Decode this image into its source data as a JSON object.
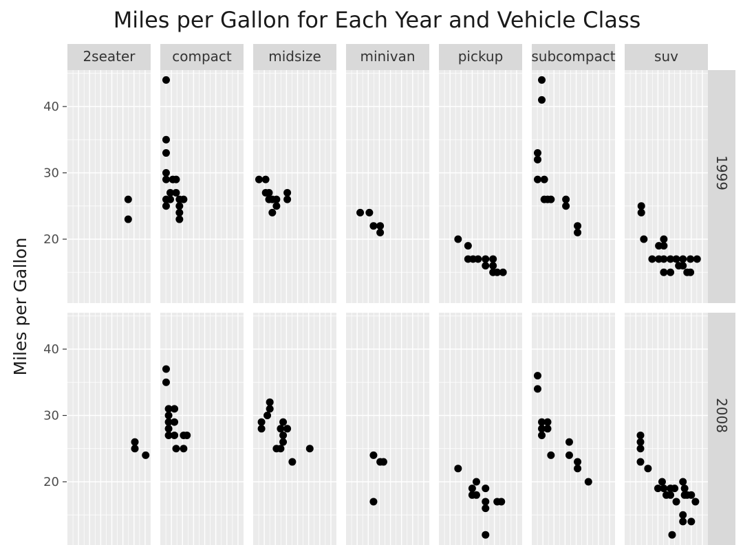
{
  "chart_data": {
    "type": "scatter",
    "title": "Miles per Gallon for Each Year and Vehicle Class",
    "xlabel": "",
    "ylabel": "Miles per Gallon",
    "facet_columns": [
      "2seater",
      "compact",
      "midsize",
      "minivan",
      "pickup",
      "subcompact",
      "suv"
    ],
    "facet_rows": [
      "1999",
      "2008"
    ],
    "y_ticks": [
      20,
      30,
      40
    ],
    "ylim": [
      11,
      46
    ],
    "x_tick_labels_shown": false,
    "grid": true,
    "point_color": "#000000",
    "panel_background": "#ebebeb",
    "strip_background": "#d9d9d9",
    "x_note": "x within each panel is a jittered position (0-1) of points; no x axis is printed",
    "points": {
      "1999": {
        "2seater": [
          [
            0.73,
            26
          ],
          [
            0.73,
            23
          ]
        ],
        "compact": [
          [
            0.07,
            44
          ],
          [
            0.07,
            35
          ],
          [
            0.07,
            33
          ],
          [
            0.07,
            30
          ],
          [
            0.07,
            29
          ],
          [
            0.15,
            29
          ],
          [
            0.19,
            29
          ],
          [
            0.07,
            26
          ],
          [
            0.12,
            26
          ],
          [
            0.23,
            26
          ],
          [
            0.07,
            25
          ],
          [
            0.12,
            27
          ],
          [
            0.19,
            27
          ],
          [
            0.23,
            24
          ],
          [
            0.23,
            23
          ],
          [
            0.28,
            26
          ],
          [
            0.23,
            25
          ]
        ],
        "midsize": [
          [
            0.07,
            29
          ],
          [
            0.15,
            29
          ],
          [
            0.15,
            27
          ],
          [
            0.19,
            27
          ],
          [
            0.19,
            26
          ],
          [
            0.23,
            26
          ],
          [
            0.28,
            26
          ],
          [
            0.28,
            25
          ],
          [
            0.23,
            24
          ],
          [
            0.41,
            27
          ],
          [
            0.41,
            26
          ]
        ],
        "minivan": [
          [
            0.17,
            24
          ],
          [
            0.28,
            24
          ],
          [
            0.33,
            22
          ],
          [
            0.41,
            22
          ],
          [
            0.41,
            21
          ]
        ],
        "pickup": [
          [
            0.23,
            20
          ],
          [
            0.35,
            19
          ],
          [
            0.35,
            17
          ],
          [
            0.41,
            17
          ],
          [
            0.47,
            17
          ],
          [
            0.56,
            17
          ],
          [
            0.56,
            16
          ],
          [
            0.65,
            16
          ],
          [
            0.65,
            17
          ],
          [
            0.65,
            15
          ],
          [
            0.7,
            15
          ],
          [
            0.77,
            15
          ]
        ],
        "subcompact": [
          [
            0.07,
            33
          ],
          [
            0.07,
            32
          ],
          [
            0.07,
            29
          ],
          [
            0.12,
            44
          ],
          [
            0.12,
            41
          ],
          [
            0.15,
            29
          ],
          [
            0.15,
            26
          ],
          [
            0.19,
            26
          ],
          [
            0.23,
            26
          ],
          [
            0.41,
            26
          ],
          [
            0.41,
            25
          ],
          [
            0.55,
            22
          ],
          [
            0.55,
            21
          ]
        ],
        "suv": [
          [
            0.2,
            25
          ],
          [
            0.2,
            24
          ],
          [
            0.23,
            20
          ],
          [
            0.33,
            17
          ],
          [
            0.41,
            17
          ],
          [
            0.41,
            19
          ],
          [
            0.47,
            17
          ],
          [
            0.47,
            15
          ],
          [
            0.47,
            20
          ],
          [
            0.47,
            19
          ],
          [
            0.55,
            17
          ],
          [
            0.55,
            15
          ],
          [
            0.62,
            17
          ],
          [
            0.65,
            16
          ],
          [
            0.7,
            17
          ],
          [
            0.7,
            16
          ],
          [
            0.75,
            15
          ],
          [
            0.79,
            15
          ],
          [
            0.79,
            17
          ],
          [
            0.87,
            17
          ]
        ]
      },
      "2008": {
        "2seater": [
          [
            0.81,
            26
          ],
          [
            0.81,
            25
          ],
          [
            0.94,
            24
          ]
        ],
        "compact": [
          [
            0.07,
            37
          ],
          [
            0.07,
            35
          ],
          [
            0.1,
            31
          ],
          [
            0.1,
            30
          ],
          [
            0.1,
            29
          ],
          [
            0.1,
            28
          ],
          [
            0.1,
            27
          ],
          [
            0.17,
            31
          ],
          [
            0.17,
            29
          ],
          [
            0.17,
            27
          ],
          [
            0.19,
            25
          ],
          [
            0.28,
            27
          ],
          [
            0.32,
            27
          ],
          [
            0.28,
            25
          ]
        ],
        "midsize": [
          [
            0.1,
            29
          ],
          [
            0.1,
            28
          ],
          [
            0.17,
            30
          ],
          [
            0.2,
            31
          ],
          [
            0.2,
            32
          ],
          [
            0.28,
            25
          ],
          [
            0.33,
            25
          ],
          [
            0.33,
            28
          ],
          [
            0.36,
            29
          ],
          [
            0.36,
            27
          ],
          [
            0.36,
            26
          ],
          [
            0.41,
            28
          ],
          [
            0.47,
            23
          ],
          [
            0.68,
            25
          ]
        ],
        "minivan": [
          [
            0.33,
            24
          ],
          [
            0.41,
            23
          ],
          [
            0.45,
            23
          ],
          [
            0.33,
            17
          ]
        ],
        "pickup": [
          [
            0.23,
            22
          ],
          [
            0.4,
            19
          ],
          [
            0.45,
            20
          ],
          [
            0.4,
            18
          ],
          [
            0.45,
            18
          ],
          [
            0.56,
            19
          ],
          [
            0.56,
            17
          ],
          [
            0.56,
            16
          ],
          [
            0.56,
            12
          ],
          [
            0.7,
            17
          ],
          [
            0.75,
            17
          ]
        ],
        "subcompact": [
          [
            0.07,
            36
          ],
          [
            0.07,
            34
          ],
          [
            0.12,
            29
          ],
          [
            0.12,
            28
          ],
          [
            0.12,
            27
          ],
          [
            0.19,
            29
          ],
          [
            0.19,
            28
          ],
          [
            0.23,
            24
          ],
          [
            0.45,
            26
          ],
          [
            0.45,
            24
          ],
          [
            0.55,
            23
          ],
          [
            0.55,
            22
          ],
          [
            0.68,
            20
          ]
        ],
        "suv": [
          [
            0.19,
            27
          ],
          [
            0.19,
            26
          ],
          [
            0.19,
            25
          ],
          [
            0.19,
            23
          ],
          [
            0.28,
            22
          ],
          [
            0.4,
            19
          ],
          [
            0.45,
            20
          ],
          [
            0.47,
            19
          ],
          [
            0.5,
            18
          ],
          [
            0.55,
            18
          ],
          [
            0.55,
            19
          ],
          [
            0.57,
            12
          ],
          [
            0.6,
            19
          ],
          [
            0.62,
            17
          ],
          [
            0.7,
            20
          ],
          [
            0.72,
            18
          ],
          [
            0.7,
            15
          ],
          [
            0.7,
            14
          ],
          [
            0.72,
            19
          ],
          [
            0.75,
            18
          ],
          [
            0.8,
            18
          ],
          [
            0.85,
            17
          ],
          [
            0.8,
            14
          ]
        ]
      }
    }
  }
}
